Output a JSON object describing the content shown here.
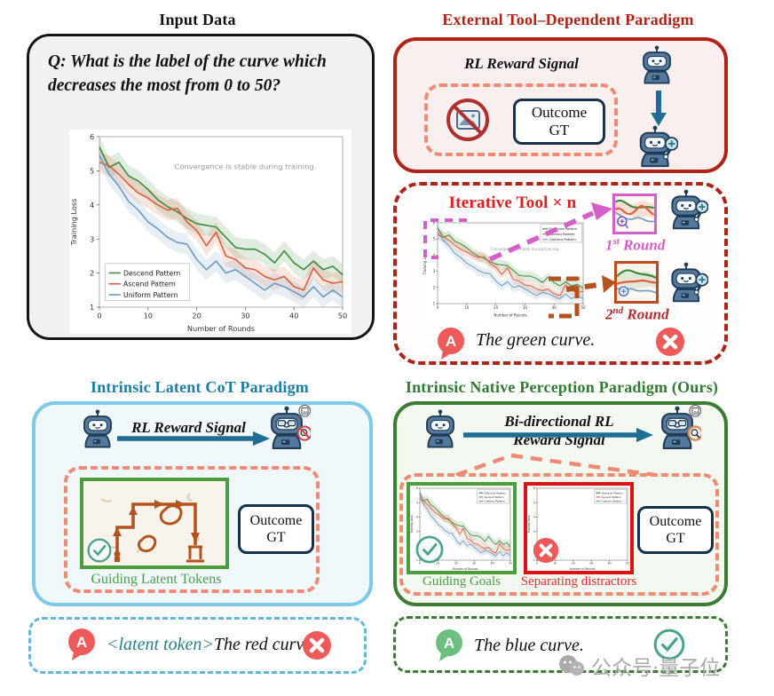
{
  "input_panel": {
    "title": "Input Data",
    "question": "Q: What is the label of the curve which decreases the most from 0 to 50?"
  },
  "external_panel": {
    "title": "External Tool–Dependent Paradigm",
    "reward_label": "RL Reward Signal"
  },
  "outcome_gt": {
    "line1": "Outcome",
    "line2": "GT"
  },
  "iterative_panel": {
    "title": "Iterative Tool × n",
    "round1_num": "1",
    "round1_sup": "st",
    "round1_word": " Round",
    "round2_num": "2",
    "round2_sup": "nd",
    "round2_word": " Round",
    "answer_badge": "A",
    "answer": "The green curve."
  },
  "latent_panel": {
    "title": "Intrinsic Latent  CoT Paradigm",
    "reward_label": "RL Reward Signal",
    "image_caption": "Guiding Latent Tokens"
  },
  "native_panel": {
    "title": "Intrinsic Native Perception Paradigm (Ours)",
    "reward_line1": "Bi-directional RL",
    "reward_line2": "Reward Signal",
    "goals_caption": "Guiding Goals",
    "distractors_caption": "Separating distractors"
  },
  "latent_answer": {
    "badge": "A",
    "latent_token": "<latent token>",
    "answer": "The red curve."
  },
  "native_answer": {
    "badge": "A",
    "answer": "The blue curve."
  },
  "watermark": {
    "text": "公众号·量子位"
  },
  "colors": {
    "external_red": "#b02418",
    "iterative_title_red": "#e02020",
    "salmon_dash": "#f08a72",
    "latent_blue_border": "#7ec9e8",
    "latent_title_teal": "#1c7ea8",
    "native_green": "#3c7d33",
    "round1_magenta": "#d45fc8",
    "round2_brown": "#b03030",
    "answer_wrong_red": "#ee5a5a",
    "answer_right_green": "#6cbf7e",
    "arrow_teal": "#1d6d94",
    "latent_token_teal": "#2a7f8a",
    "caption_green": "#4a9e4a",
    "caption_red": "#e03030"
  },
  "chart_data": {
    "type": "line",
    "title": "",
    "xlabel": "Number of Rounds",
    "ylabel": "Training Loss",
    "annotation": "Convergence is stable during training.",
    "xlim": [
      0,
      50
    ],
    "ylim": [
      1,
      6
    ],
    "xticks": [
      0,
      10,
      20,
      30,
      40,
      50
    ],
    "yticks": [
      1,
      2,
      3,
      4,
      5,
      6
    ],
    "legend_position": "lower left",
    "grid": false,
    "band_halfwidth": 0.3,
    "x": [
      0,
      2,
      4,
      6,
      8,
      10,
      12,
      14,
      16,
      18,
      20,
      22,
      24,
      26,
      28,
      30,
      32,
      34,
      36,
      38,
      40,
      42,
      44,
      46,
      48,
      50
    ],
    "series": [
      {
        "name": "Descend Pattern",
        "color": "#3d8b3d",
        "values": [
          5.7,
          5.1,
          5.25,
          4.85,
          4.7,
          4.45,
          4.15,
          3.95,
          3.8,
          3.6,
          3.45,
          3.4,
          3.35,
          3.05,
          2.75,
          2.7,
          2.7,
          2.55,
          2.3,
          2.65,
          2.3,
          2.1,
          2.35,
          2.1,
          2.2,
          1.95
        ]
      },
      {
        "name": "Ascend Pattern",
        "color": "#dd5f3b",
        "values": [
          5.25,
          5.15,
          4.9,
          4.6,
          4.35,
          4.2,
          4.0,
          3.85,
          3.9,
          3.5,
          3.25,
          2.8,
          3.2,
          2.5,
          2.4,
          2.15,
          2.1,
          1.9,
          1.8,
          1.9,
          1.6,
          1.5,
          2.15,
          1.8,
          1.7,
          1.75
        ]
      },
      {
        "name": "Uniform Pattern",
        "color": "#6b9bc3",
        "values": [
          5.45,
          4.9,
          4.55,
          4.1,
          3.85,
          3.5,
          3.3,
          3.05,
          2.9,
          2.85,
          2.4,
          2.1,
          2.35,
          2.0,
          2.1,
          1.9,
          1.7,
          1.5,
          1.7,
          1.6,
          1.45,
          1.3,
          1.6,
          1.3,
          1.5,
          1.3
        ]
      }
    ]
  }
}
